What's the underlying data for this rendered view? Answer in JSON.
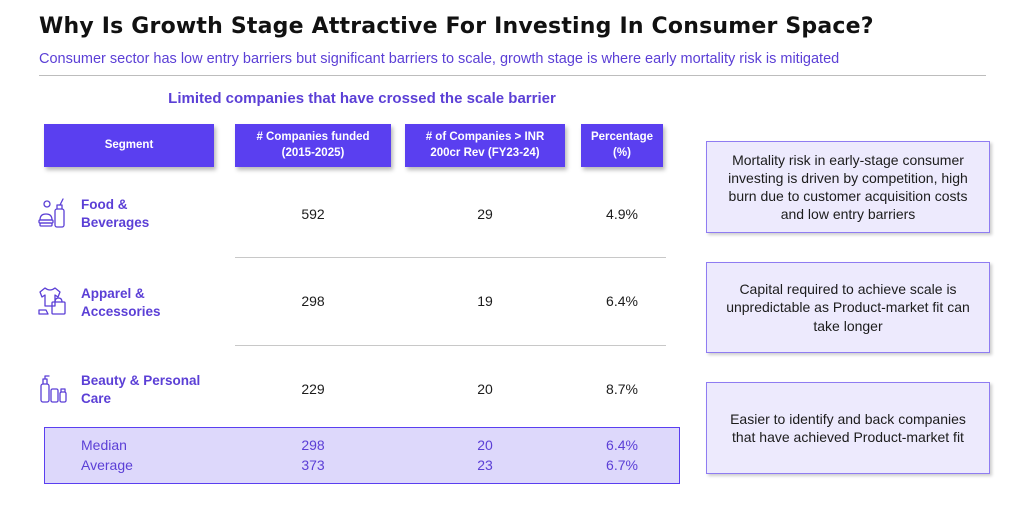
{
  "header": {
    "title": "Why Is Growth Stage Attractive For Investing In Consumer Space?",
    "subtitle": "Consumer sector has low entry barriers but significant barriers to scale, growth stage is where early mortality risk is mitigated"
  },
  "table": {
    "title": "Limited companies that have crossed the scale barrier",
    "columns": {
      "segment": "Segment",
      "funded_line1": "# Companies funded",
      "funded_line2": "(2015-2025)",
      "rev_line1": "# of Companies > INR",
      "rev_line2": "200cr Rev (FY23-24)",
      "pct_line1": "Percentage",
      "pct_line2": "(%)"
    },
    "rows": [
      {
        "label_line1": "Food &",
        "label_line2": "Beverages",
        "icon": "food-beverage-icon",
        "funded": "592",
        "over_200cr": "29",
        "percentage": "4.9%"
      },
      {
        "label_line1": "Apparel &",
        "label_line2": "Accessories",
        "icon": "apparel-icon",
        "funded": "298",
        "over_200cr": "19",
        "percentage": "6.4%"
      },
      {
        "label_line1": "Beauty & Personal",
        "label_line2": "Care",
        "icon": "beauty-care-icon",
        "funded": "229",
        "over_200cr": "20",
        "percentage": "8.7%"
      }
    ],
    "summary": [
      {
        "label": "Median",
        "funded": "298",
        "over_200cr": "20",
        "percentage": "6.4%"
      },
      {
        "label": "Average",
        "funded": "373",
        "over_200cr": "23",
        "percentage": "6.7%"
      }
    ]
  },
  "callouts": [
    "Mortality risk in early-stage consumer investing is driven by competition, high burn due to customer acquisition costs and low entry barriers",
    "Capital required to achieve scale is unpredictable as Product-market fit can take longer",
    "Easier to identify and back companies that have achieved Product-market fit"
  ],
  "colors": {
    "accent": "#5a3ff0",
    "accent_text": "#5b3fd6",
    "summary_fill": "#ddd8fb",
    "callout_fill": "#edeafd"
  }
}
